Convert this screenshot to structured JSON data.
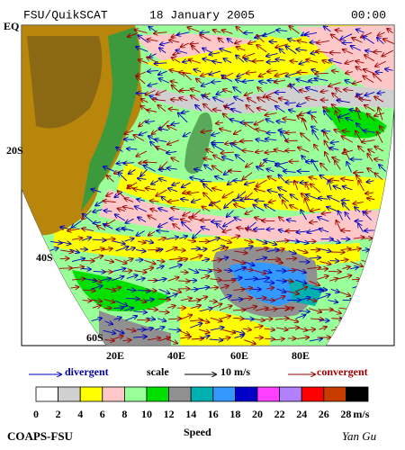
{
  "header": {
    "title": "FSU/QuikSCAT",
    "date": "18 January 2005",
    "time": "00:00"
  },
  "map": {
    "lat_labels": [
      "EQ",
      "20S",
      "40S",
      "60S"
    ],
    "lon_labels": [
      "20E",
      "40E",
      "60E",
      "80E"
    ]
  },
  "legend": {
    "divergent": "divergent",
    "scale": "scale",
    "scale_value": "10 m/s",
    "convergent": "convergent"
  },
  "colorbar": {
    "title": "Speed",
    "unit": "m/s",
    "labels": [
      0,
      2,
      4,
      6,
      8,
      10,
      12,
      14,
      16,
      18,
      20,
      22,
      24,
      26,
      28
    ],
    "colors": [
      "#ffffff",
      "#d0d0d0",
      "#ffff00",
      "#ffc8c8",
      "#99ff99",
      "#00e000",
      "#909090",
      "#00b0b0",
      "#3399ff",
      "#0000c8",
      "#ff40ff",
      "#b080ff",
      "#ff0000",
      "#c83c00",
      "#000000"
    ]
  },
  "footer": {
    "left": "COAPS-FSU",
    "right": "Yan Gu"
  }
}
